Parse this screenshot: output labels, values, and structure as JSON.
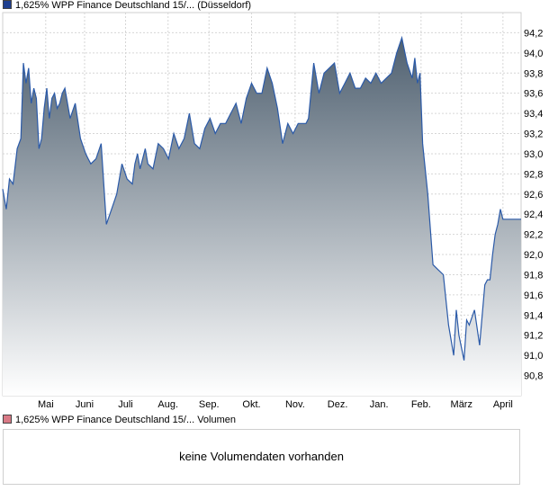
{
  "legend": {
    "price_label": "1,625% WPP Finance Deutschland 15/... (Düsseldorf)",
    "price_color": "#1f3f8f",
    "volume_label": "1,625% WPP Finance Deutschland 15/... Volumen",
    "volume_color": "#d97a86"
  },
  "volume": {
    "message": "keine Volumendaten vorhanden"
  },
  "chart_data": {
    "type": "area",
    "title": "",
    "xlabel": "",
    "ylabel": "",
    "ylim": [
      90.6,
      94.4
    ],
    "yticks": [
      "90,8",
      "91,0",
      "91,2",
      "91,4",
      "91,6",
      "91,8",
      "92,0",
      "92,2",
      "92,4",
      "92,6",
      "92,8",
      "93,0",
      "93,2",
      "93,4",
      "93,6",
      "93,8",
      "94,0",
      "94,2"
    ],
    "ytick_values": [
      90.8,
      91.0,
      91.2,
      91.4,
      91.6,
      91.8,
      92.0,
      92.2,
      92.4,
      92.6,
      92.8,
      93.0,
      93.2,
      93.4,
      93.6,
      93.8,
      94.0,
      94.2
    ],
    "xticks": [
      "Mai",
      "Juni",
      "Juli",
      "Aug.",
      "Sep.",
      "Okt.",
      "Nov.",
      "Dez.",
      "Jan.",
      "Feb.",
      "März",
      "April"
    ],
    "xtick_pos": [
      0.083,
      0.158,
      0.237,
      0.319,
      0.398,
      0.48,
      0.564,
      0.646,
      0.726,
      0.807,
      0.885,
      0.965
    ],
    "grid": true,
    "line_color": "#2b5aa8",
    "fill_top": "#4f6070",
    "fill_bottom": "#ffffff",
    "series": [
      {
        "x": [
          0.0,
          0.007,
          0.013,
          0.02,
          0.028,
          0.035,
          0.04,
          0.045,
          0.05,
          0.055,
          0.06,
          0.065,
          0.07,
          0.075,
          0.08,
          0.085,
          0.09,
          0.095,
          0.1,
          0.105,
          0.11,
          0.115,
          0.12,
          0.13,
          0.14,
          0.15,
          0.16,
          0.165,
          0.17,
          0.18,
          0.19,
          0.2,
          0.21,
          0.22,
          0.23,
          0.24,
          0.25,
          0.255,
          0.26,
          0.265,
          0.27,
          0.275,
          0.28,
          0.29,
          0.3,
          0.31,
          0.32,
          0.33,
          0.34,
          0.35,
          0.36,
          0.37,
          0.38,
          0.39,
          0.4,
          0.41,
          0.42,
          0.43,
          0.44,
          0.45,
          0.46,
          0.47,
          0.48,
          0.49,
          0.5,
          0.51,
          0.52,
          0.53,
          0.54,
          0.55,
          0.56,
          0.57,
          0.58,
          0.585,
          0.59,
          0.6,
          0.61,
          0.62,
          0.63,
          0.64,
          0.65,
          0.66,
          0.67,
          0.68,
          0.69,
          0.7,
          0.71,
          0.72,
          0.73,
          0.74,
          0.75,
          0.76,
          0.77,
          0.78,
          0.79,
          0.795,
          0.8,
          0.805,
          0.81,
          0.82,
          0.83,
          0.84,
          0.85,
          0.86,
          0.87,
          0.875,
          0.88,
          0.89,
          0.895,
          0.9,
          0.91,
          0.92,
          0.93,
          0.935,
          0.94,
          0.945,
          0.95,
          0.955,
          0.96,
          0.965,
          0.97,
          0.975,
          0.98,
          0.985,
          0.99,
          0.995,
          1.0
        ],
        "y": [
          92.65,
          92.45,
          92.75,
          92.7,
          93.05,
          93.15,
          93.9,
          93.7,
          93.85,
          93.5,
          93.65,
          93.55,
          93.05,
          93.15,
          93.45,
          93.65,
          93.35,
          93.55,
          93.6,
          93.45,
          93.5,
          93.6,
          93.65,
          93.35,
          93.5,
          93.15,
          93.0,
          92.95,
          92.9,
          92.95,
          93.1,
          92.3,
          92.45,
          92.6,
          92.9,
          92.75,
          92.7,
          92.9,
          93.0,
          92.85,
          92.95,
          93.05,
          92.9,
          92.85,
          93.1,
          93.05,
          92.95,
          93.2,
          93.05,
          93.15,
          93.4,
          93.1,
          93.05,
          93.25,
          93.35,
          93.2,
          93.3,
          93.3,
          93.4,
          93.5,
          93.3,
          93.55,
          93.7,
          93.6,
          93.6,
          93.85,
          93.7,
          93.45,
          93.1,
          93.3,
          93.2,
          93.3,
          93.3,
          93.3,
          93.35,
          93.9,
          93.6,
          93.8,
          93.85,
          93.9,
          93.6,
          93.7,
          93.8,
          93.65,
          93.65,
          93.75,
          93.7,
          93.8,
          93.7,
          93.75,
          93.8,
          94.0,
          94.15,
          93.9,
          93.75,
          93.95,
          93.7,
          93.8,
          93.1,
          92.6,
          91.9,
          91.85,
          91.8,
          91.3,
          91.0,
          91.45,
          91.2,
          90.95,
          91.35,
          91.3,
          91.45,
          91.1,
          91.7,
          91.75,
          91.75,
          92.0,
          92.2,
          92.3,
          92.45,
          92.35,
          92.35,
          92.35,
          92.35,
          92.35,
          92.35,
          92.35,
          92.35
        ]
      }
    ]
  }
}
